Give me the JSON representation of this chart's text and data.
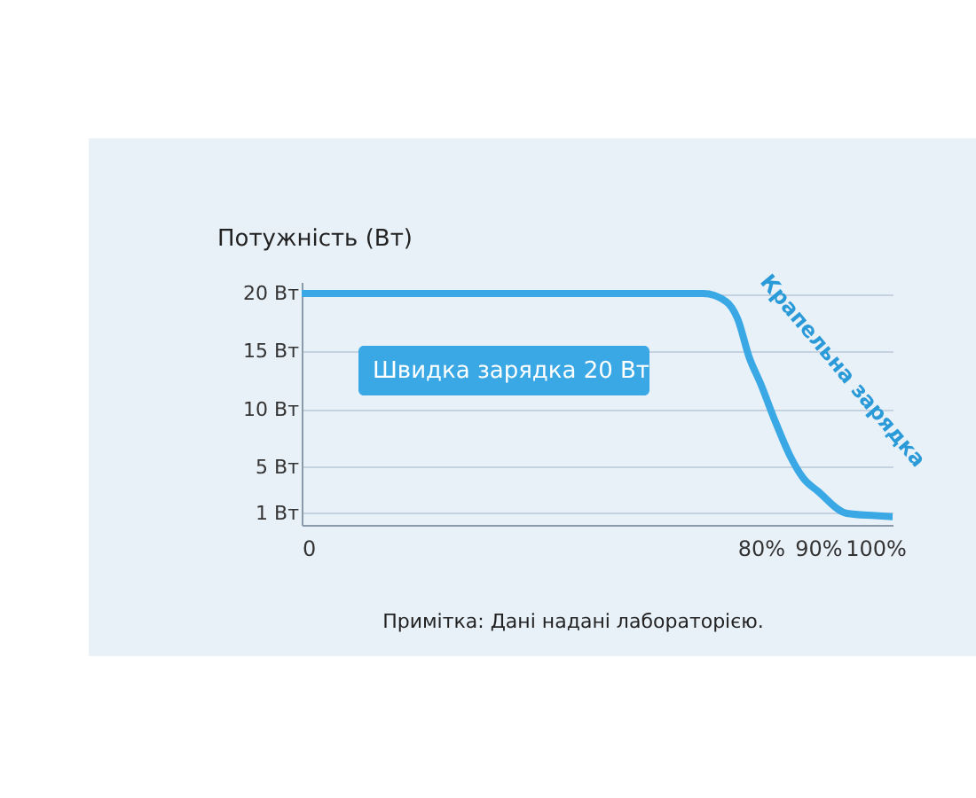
{
  "chart_data": {
    "type": "line",
    "ylabel": "Потужність (Вт)",
    "x": [
      0,
      70,
      74,
      76,
      78,
      80,
      82.5,
      85,
      87.5,
      90,
      95,
      100,
      103
    ],
    "series": [
      {
        "color": "#3aa8e4",
        "values": [
          20,
          20,
          19.3,
          17.8,
          14.5,
          12.2,
          9,
          6.1,
          4,
          2.9,
          1,
          0.8,
          0.7
        ]
      }
    ],
    "xlim": [
      0,
      103
    ],
    "xticks": [
      0,
      {
        "value": 80,
        "label": "80%"
      },
      {
        "value": 90,
        "label": "90%"
      },
      {
        "value": 100,
        "label": "100%"
      }
    ],
    "ylim": [
      0,
      21
    ],
    "yticks": [
      {
        "value": 1,
        "label": "1 Вт"
      },
      {
        "value": 5,
        "label": "5 Вт"
      },
      {
        "value": 10,
        "label": "10 Вт"
      },
      {
        "value": 15,
        "label": "15 Вт"
      },
      {
        "value": 20,
        "label": "20 Вт"
      }
    ],
    "grid": "y",
    "line_style": "solid",
    "annotations": [
      "Швидка зарядка 20 Вт",
      "Крапельна зарядка",
      "Примітка: Дані надані лабораторією."
    ]
  }
}
